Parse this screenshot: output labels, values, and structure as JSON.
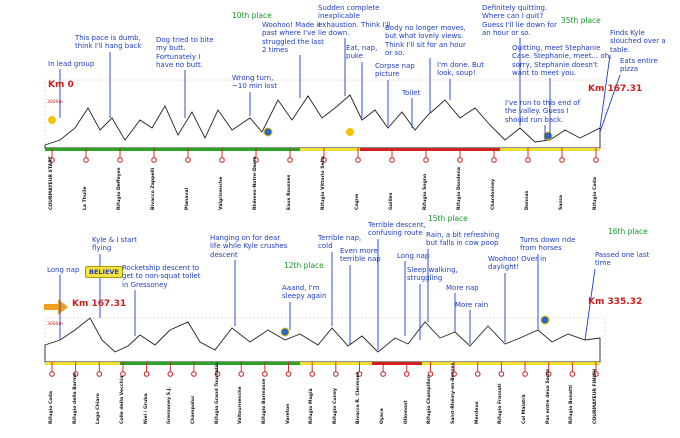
{
  "panels": [
    {
      "km_start": "Km 0",
      "km_end": "Km 167.31",
      "altitude": "3000m",
      "annotations": [
        "In lead group",
        "This pace is dumb, think I'll hang back",
        "Dog tried to bite my butt. Fortunately I have no butt.",
        "Wrong turn, ~10 min lost",
        "Woohoo! Made it past where I've struggled the last 2 times",
        "Sudden complete inexplicable exhaustion. Think I'll lie down.",
        "Eat, nap, puke",
        "Corpse nap picture",
        "Toilet",
        "Body no longer moves, but what lovely views. Think I'll sit for an hour or so.",
        "I'm done. But look, soup!",
        "Definitely quitting. Where can I quit? Guess I'll lie down for an hour or so.",
        "Quitting, meet Stephanie Case. Stephanie, meet... oh, sorry, Stephanie doesn't want to meet you.",
        "I've run to this end of the valley. Guess I should run back.",
        "Finds Kyle slouched over a table.",
        "Eats entire pizza"
      ],
      "places": [
        "10th place",
        "35th place"
      ],
      "stations": [
        "COURMAYEUR START",
        "La Thuile",
        "Rifugio Deffeyes",
        "Bivacco Zappelli",
        "Planaval",
        "Valgrisenche",
        "Rhêmes-Notre-Dame",
        "Eaux Rousses",
        "Rifugio Vittorio Sella",
        "Cogne",
        "Goilles",
        "Rifugio Sogno",
        "Rifugio Dondena",
        "Chardonney",
        "Donnas",
        "Sassa",
        "Rifugio Coda"
      ]
    },
    {
      "km_start": "Km 167.31",
      "km_end": "Km 335.32",
      "altitude": "3000m",
      "badge": "BELIEVE",
      "annotations": [
        "Long nap",
        "Kyle & I start flying",
        "Rocketship descent to get to non-squat toilet in Gressoney",
        "Hanging on for dear life while Kyle crushes descent",
        "Aaand, I'm sleepy again",
        "Terrible nap, cold",
        "Even more terrible nap",
        "Terrible descent, confusing route",
        "Long nap",
        "Rain, a bit refreshing but falls in cow poop",
        "Sleep walking, struggling",
        "More nap",
        "More rain",
        "Woohoo! Over in daylight!",
        "Turns down ride from horses",
        "Passed one last time"
      ],
      "places": [
        "12th place",
        "15th place",
        "16th place"
      ],
      "stations": [
        "Rifugio Coda",
        "Rifugio della Barma",
        "Lago Chiaro",
        "Colle della Vecchia",
        "Niel / Gruba",
        "Gressoney S.J.",
        "Champoluc",
        "Rifugio Grand Tournalin",
        "Valtournenche",
        "Rifugio Barmasse",
        "Vareton",
        "Rifugio Magià",
        "Rifugio Cuney",
        "Bivacco R. Clermont",
        "Oyace",
        "Ollomont",
        "Rifugio Champillon",
        "Saint-Rhémy-en-Bosses",
        "Merdeux",
        "Rifugio Frassati",
        "Col Malatrà",
        "Pas entre deux Sauts",
        "Rifugio Bonatti",
        "COURMAYEUR FINISH"
      ]
    }
  ]
}
